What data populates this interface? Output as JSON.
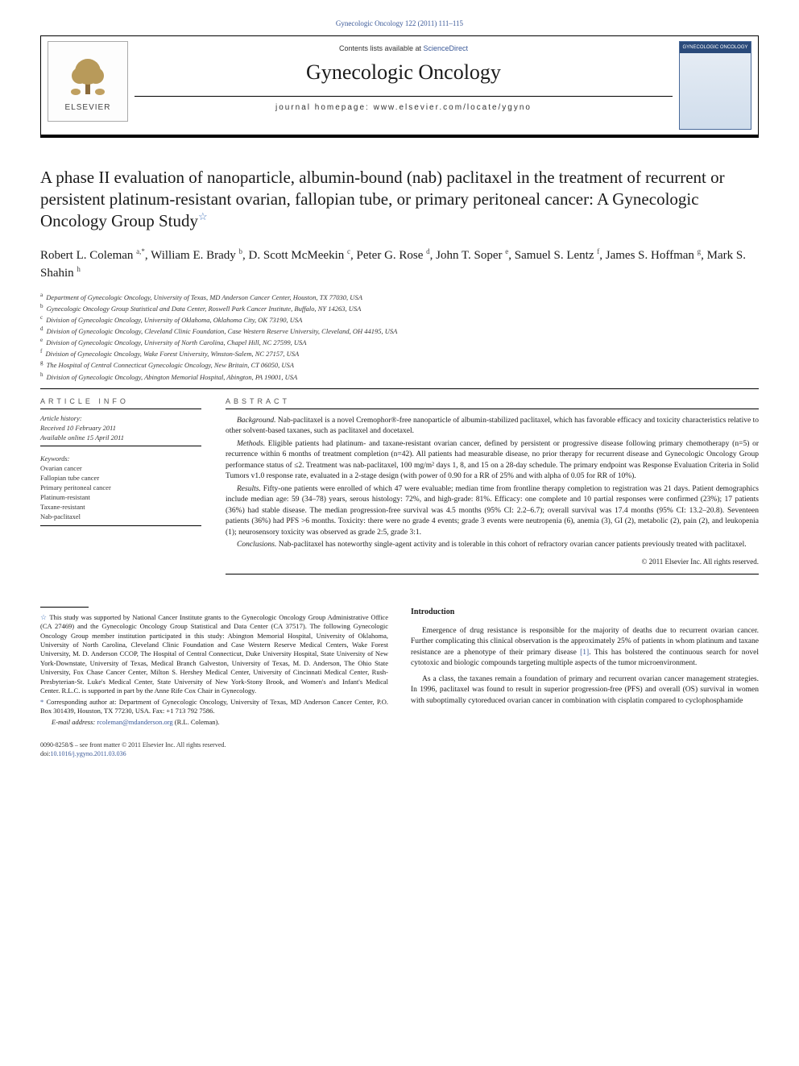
{
  "header": {
    "top_link": "Gynecologic Oncology 122 (2011) 111–115",
    "contents_prefix": "Contents lists available at ",
    "contents_link": "ScienceDirect",
    "journal_title": "Gynecologic Oncology",
    "homepage_label": "journal homepage: www.elsevier.com/locate/ygyno",
    "elsevier_text": "ELSEVIER",
    "cover_label": "GYNECOLOGIC ONCOLOGY"
  },
  "title": "A phase II evaluation of nanoparticle, albumin-bound (nab) paclitaxel in the treatment of recurrent or persistent platinum-resistant ovarian, fallopian tube, or primary peritoneal cancer: A Gynecologic Oncology Group Study",
  "authors": [
    {
      "name": "Robert L. Coleman",
      "sup": "a,",
      "corr": "*"
    },
    {
      "name": "William E. Brady",
      "sup": "b"
    },
    {
      "name": "D. Scott McMeekin",
      "sup": "c"
    },
    {
      "name": "Peter G. Rose",
      "sup": "d"
    },
    {
      "name": "John T. Soper",
      "sup": "e"
    },
    {
      "name": "Samuel S. Lentz",
      "sup": "f"
    },
    {
      "name": "James S. Hoffman",
      "sup": "g"
    },
    {
      "name": "Mark S. Shahin",
      "sup": "h"
    }
  ],
  "affiliations": [
    {
      "sup": "a",
      "text": "Department of Gynecologic Oncology, University of Texas, MD Anderson Cancer Center, Houston, TX 77030, USA"
    },
    {
      "sup": "b",
      "text": "Gynecologic Oncology Group Statistical and Data Center, Roswell Park Cancer Institute, Buffalo, NY 14263, USA"
    },
    {
      "sup": "c",
      "text": "Division of Gynecologic Oncology, University of Oklahoma, Oklahoma City, OK 73190, USA"
    },
    {
      "sup": "d",
      "text": "Division of Gynecologic Oncology, Cleveland Clinic Foundation, Case Western Reserve University, Cleveland, OH 44195, USA"
    },
    {
      "sup": "e",
      "text": "Division of Gynecologic Oncology, University of North Carolina, Chapel Hill, NC 27599, USA"
    },
    {
      "sup": "f",
      "text": "Division of Gynecologic Oncology, Wake Forest University, Winston-Salem, NC 27157, USA"
    },
    {
      "sup": "g",
      "text": "The Hospital of Central Connecticut Gynecologic Oncology, New Britain, CT 06050, USA"
    },
    {
      "sup": "h",
      "text": "Division of Gynecologic Oncology, Abington Memorial Hospital, Abington, PA 19001, USA"
    }
  ],
  "article_info": {
    "heading": "ARTICLE INFO",
    "history_label": "Article history:",
    "received": "Received 10 February 2011",
    "online": "Available online 15 April 2011",
    "keywords_label": "Keywords:",
    "keywords": [
      "Ovarian cancer",
      "Fallopian tube cancer",
      "Primary peritoneal cancer",
      "Platinum-resistant",
      "Taxane-resistant",
      "Nab-paclitaxel"
    ]
  },
  "abstract": {
    "heading": "ABSTRACT",
    "paragraphs": [
      {
        "label": "Background.",
        "text": " Nab-paclitaxel is a novel Cremophor®-free nanoparticle of albumin-stabilized paclitaxel, which has favorable efficacy and toxicity characteristics relative to other solvent-based taxanes, such as paclitaxel and docetaxel."
      },
      {
        "label": "Methods.",
        "text": " Eligible patients had platinum- and taxane-resistant ovarian cancer, defined by persistent or progressive disease following primary chemotherapy (n=5) or recurrence within 6 months of treatment completion (n=42). All patients had measurable disease, no prior therapy for recurrent disease and Gynecologic Oncology Group performance status of ≤2. Treatment was nab-paclitaxel, 100 mg/m² days 1, 8, and 15 on a 28-day schedule. The primary endpoint was Response Evaluation Criteria in Solid Tumors v1.0 response rate, evaluated in a 2-stage design (with power of 0.90 for a RR of 25% and with alpha of 0.05 for RR of 10%)."
      },
      {
        "label": "Results.",
        "text": " Fifty-one patients were enrolled of which 47 were evaluable; median time from frontline therapy completion to registration was 21 days. Patient demographics include median age: 59 (34–78) years, serous histology: 72%, and high-grade: 81%. Efficacy: one complete and 10 partial responses were confirmed (23%); 17 patients (36%) had stable disease. The median progression-free survival was 4.5 months (95% CI: 2.2–6.7); overall survival was 17.4 months (95% CI: 13.2–20.8). Seventeen patients (36%) had PFS >6 months. Toxicity: there were no grade 4 events; grade 3 events were neutropenia (6), anemia (3), GI (2), metabolic (2), pain (2), and leukopenia (1); neurosensory toxicity was observed as grade 2:5, grade 3:1."
      },
      {
        "label": "Conclusions.",
        "text": " Nab-paclitaxel has noteworthy single-agent activity and is tolerable in this cohort of refractory ovarian cancer patients previously treated with paclitaxel."
      }
    ],
    "copyright": "© 2011 Elsevier Inc. All rights reserved."
  },
  "footnotes": {
    "funding": "This study was supported by National Cancer Institute grants to the Gynecologic Oncology Group Administrative Office (CA 27469) and the Gynecologic Oncology Group Statistical and Data Center (CA 37517). The following Gynecologic Oncology Group member institution participated in this study: Abington Memorial Hospital, University of Oklahoma, University of North Carolina, Cleveland Clinic Foundation and Case Western Reserve Medical Centers, Wake Forest University, M. D. Anderson CCOP, The Hospital of Central Connecticut, Duke University Hospital, State University of New York-Downstate, University of Texas, Medical Branch Galveston, University of Texas, M. D. Anderson, The Ohio State University, Fox Chase Cancer Center, Milton S. Hershey Medical Center, University of Cincinnati Medical Center, Rush-Presbyterian-St. Luke's Medical Center, State University of New York-Stony Brook, and Women's and Infant's Medical Center. R.L.C. is supported in part by the Anne Rife Cox Chair in Gynecology.",
    "corr": "Corresponding author at: Department of Gynecologic Oncology, University of Texas, MD Anderson Cancer Center, P.O. Box 301439, Houston, TX 77230, USA. Fax: +1 713 792 7586.",
    "email_label": "E-mail address:",
    "email": "rcoleman@mdanderson.org",
    "email_suffix": " (R.L. Coleman)."
  },
  "intro": {
    "heading": "Introduction",
    "p1": "Emergence of drug resistance is responsible for the majority of deaths due to recurrent ovarian cancer. Further complicating this clinical observation is the approximately 25% of patients in whom platinum and taxane resistance are a phenotype of their primary disease ",
    "p1_ref": "[1]",
    "p1_suffix": ". This has bolstered the continuous search for novel cytotoxic and biologic compounds targeting multiple aspects of the tumor microenvironment.",
    "p2": "As a class, the taxanes remain a foundation of primary and recurrent ovarian cancer management strategies. In 1996, paclitaxel was found to result in superior progression-free (PFS) and overall (OS) survival in women with suboptimally cytoreduced ovarian cancer in combination with cisplatin compared to cyclophosphamide"
  },
  "bottom": {
    "front_matter": "0090-8258/$ – see front matter © 2011 Elsevier Inc. All rights reserved.",
    "doi_label": "doi:",
    "doi": "10.1016/j.ygyno.2011.03.036"
  },
  "colors": {
    "link": "#3b5998",
    "star": "#4a7abf",
    "text": "#1a1a1a"
  }
}
